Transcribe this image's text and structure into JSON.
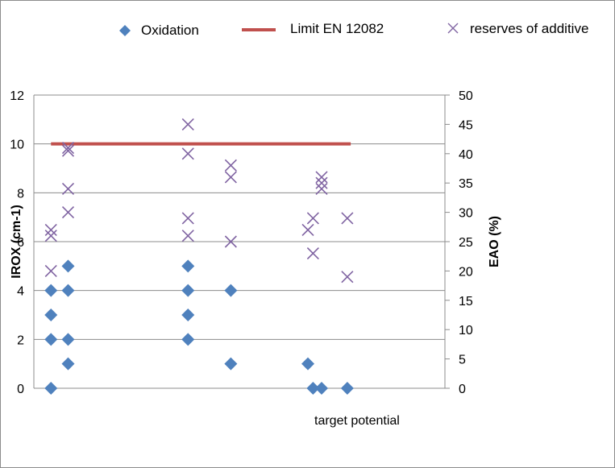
{
  "chart_data": {
    "type": "scatter",
    "xlabel": "target potential",
    "ylabel_left": "IROX (cm-1)",
    "ylabel_right": "EAO (%)",
    "ylim_left": [
      0,
      12
    ],
    "ylim_right": [
      0,
      50
    ],
    "yticks_left": [
      "0",
      "2",
      "4",
      "6",
      "8",
      "10",
      "12"
    ],
    "yticks_right": [
      "0",
      "5",
      "10",
      "15",
      "20",
      "25",
      "30",
      "35",
      "40",
      "45",
      "50"
    ],
    "grid": "horizontal",
    "legend_position": "top",
    "xlim": [
      0,
      24
    ],
    "series": [
      {
        "name": "Oxidation",
        "marker": "diamond",
        "color": "#4f81bd",
        "axis": "left",
        "points": [
          {
            "x": 1,
            "y": 0
          },
          {
            "x": 1,
            "y": 2
          },
          {
            "x": 1,
            "y": 3
          },
          {
            "x": 1,
            "y": 4
          },
          {
            "x": 2,
            "y": 1
          },
          {
            "x": 2,
            "y": 2
          },
          {
            "x": 2,
            "y": 4
          },
          {
            "x": 2,
            "y": 5
          },
          {
            "x": 9,
            "y": 2
          },
          {
            "x": 9,
            "y": 3
          },
          {
            "x": 9,
            "y": 4
          },
          {
            "x": 9,
            "y": 5
          },
          {
            "x": 11.5,
            "y": 1
          },
          {
            "x": 11.5,
            "y": 4
          },
          {
            "x": 16,
            "y": 1
          },
          {
            "x": 16.3,
            "y": 0
          },
          {
            "x": 16.8,
            "y": 0
          },
          {
            "x": 18.3,
            "y": 0
          }
        ]
      },
      {
        "name": "Limit EN 12082",
        "marker": "line",
        "color": "#c0504d",
        "axis": "left",
        "points": [
          {
            "x": 1,
            "y": 10
          },
          {
            "x": 18.5,
            "y": 10
          }
        ]
      },
      {
        "name": "reserves of additive",
        "marker": "x",
        "color": "#8064a2",
        "axis": "right",
        "points": [
          {
            "x": 1,
            "y": 20
          },
          {
            "x": 1,
            "y": 26
          },
          {
            "x": 1,
            "y": 27
          },
          {
            "x": 2,
            "y": 30
          },
          {
            "x": 2,
            "y": 34
          },
          {
            "x": 2,
            "y": 40.5
          },
          {
            "x": 2,
            "y": 41
          },
          {
            "x": 9,
            "y": 26
          },
          {
            "x": 9,
            "y": 29
          },
          {
            "x": 9,
            "y": 40
          },
          {
            "x": 9,
            "y": 45
          },
          {
            "x": 11.5,
            "y": 25
          },
          {
            "x": 11.5,
            "y": 36
          },
          {
            "x": 11.5,
            "y": 38
          },
          {
            "x": 16,
            "y": 27
          },
          {
            "x": 16.3,
            "y": 23
          },
          {
            "x": 16.3,
            "y": 29
          },
          {
            "x": 16.8,
            "y": 34
          },
          {
            "x": 16.8,
            "y": 35
          },
          {
            "x": 16.8,
            "y": 36
          },
          {
            "x": 18.3,
            "y": 19
          },
          {
            "x": 18.3,
            "y": 29
          }
        ]
      }
    ]
  }
}
